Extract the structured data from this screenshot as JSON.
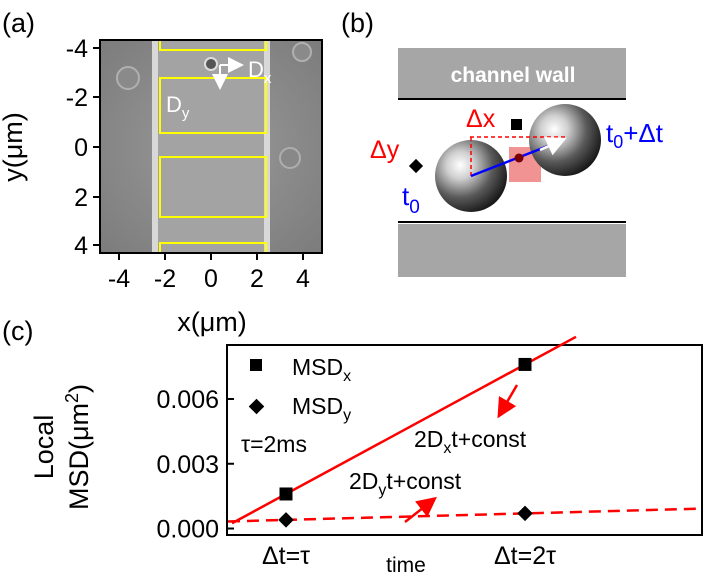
{
  "panel_a": {
    "label": "(a)",
    "x_ticks": [
      "-4",
      "-2",
      "0",
      "2",
      "4"
    ],
    "y_ticks": [
      "-4",
      "-2",
      "0",
      "2",
      "4"
    ],
    "xlabel": "x(μm)",
    "ylabel": "y(μm)",
    "dx_label": {
      "main": "D",
      "sub": "x"
    },
    "dy_label": {
      "main": "D",
      "sub": "y"
    },
    "box_color": "#ffff00"
  },
  "panel_b": {
    "label": "(b)",
    "wall_label": "channel wall",
    "dx_label": "Δx",
    "dy_label": "Δy",
    "t0_label": {
      "main": "t",
      "sub": "0"
    },
    "t1_label": {
      "prefix": "t",
      "sub": "0",
      "suffix": "+Δt"
    },
    "colors": {
      "delta": "#ff0000",
      "time": "#0000ff",
      "wall": "#a6a6a6",
      "highlight": "#f08080"
    }
  },
  "panel_c": {
    "label": "(c)",
    "ylabel_line1": "Local",
    "ylabel_line2": {
      "main": "MSD(μm",
      "sup": "2",
      "end": ")"
    },
    "y_ticks": [
      "0.000",
      "0.003",
      "0.006"
    ],
    "x_ticks": [
      "Δt=τ",
      "time",
      "Δt=2τ"
    ],
    "tau_label": "τ=2ms",
    "legend": [
      {
        "marker": "square",
        "main": "MSD",
        "sub": "x"
      },
      {
        "marker": "diamond",
        "main": "MSD",
        "sub": "y"
      }
    ],
    "fit_x_label": {
      "pre": "2D",
      "sub": "x",
      "post": "t+const"
    },
    "fit_y_label": {
      "pre": "2D",
      "sub": "y",
      "post": "t+const"
    },
    "line_color": "#ff0000"
  },
  "chart_data": {
    "type": "scatter",
    "x": [
      "Δt=τ",
      "Δt=2τ"
    ],
    "series": [
      {
        "name": "MSDx",
        "values": [
          0.0016,
          0.0076
        ]
      },
      {
        "name": "MSDy",
        "values": [
          0.0004,
          0.0007
        ]
      }
    ],
    "ylim": [
      -0.0003,
      0.0085
    ],
    "ylabel": "Local MSD(μm²)",
    "xlabel": "time"
  }
}
